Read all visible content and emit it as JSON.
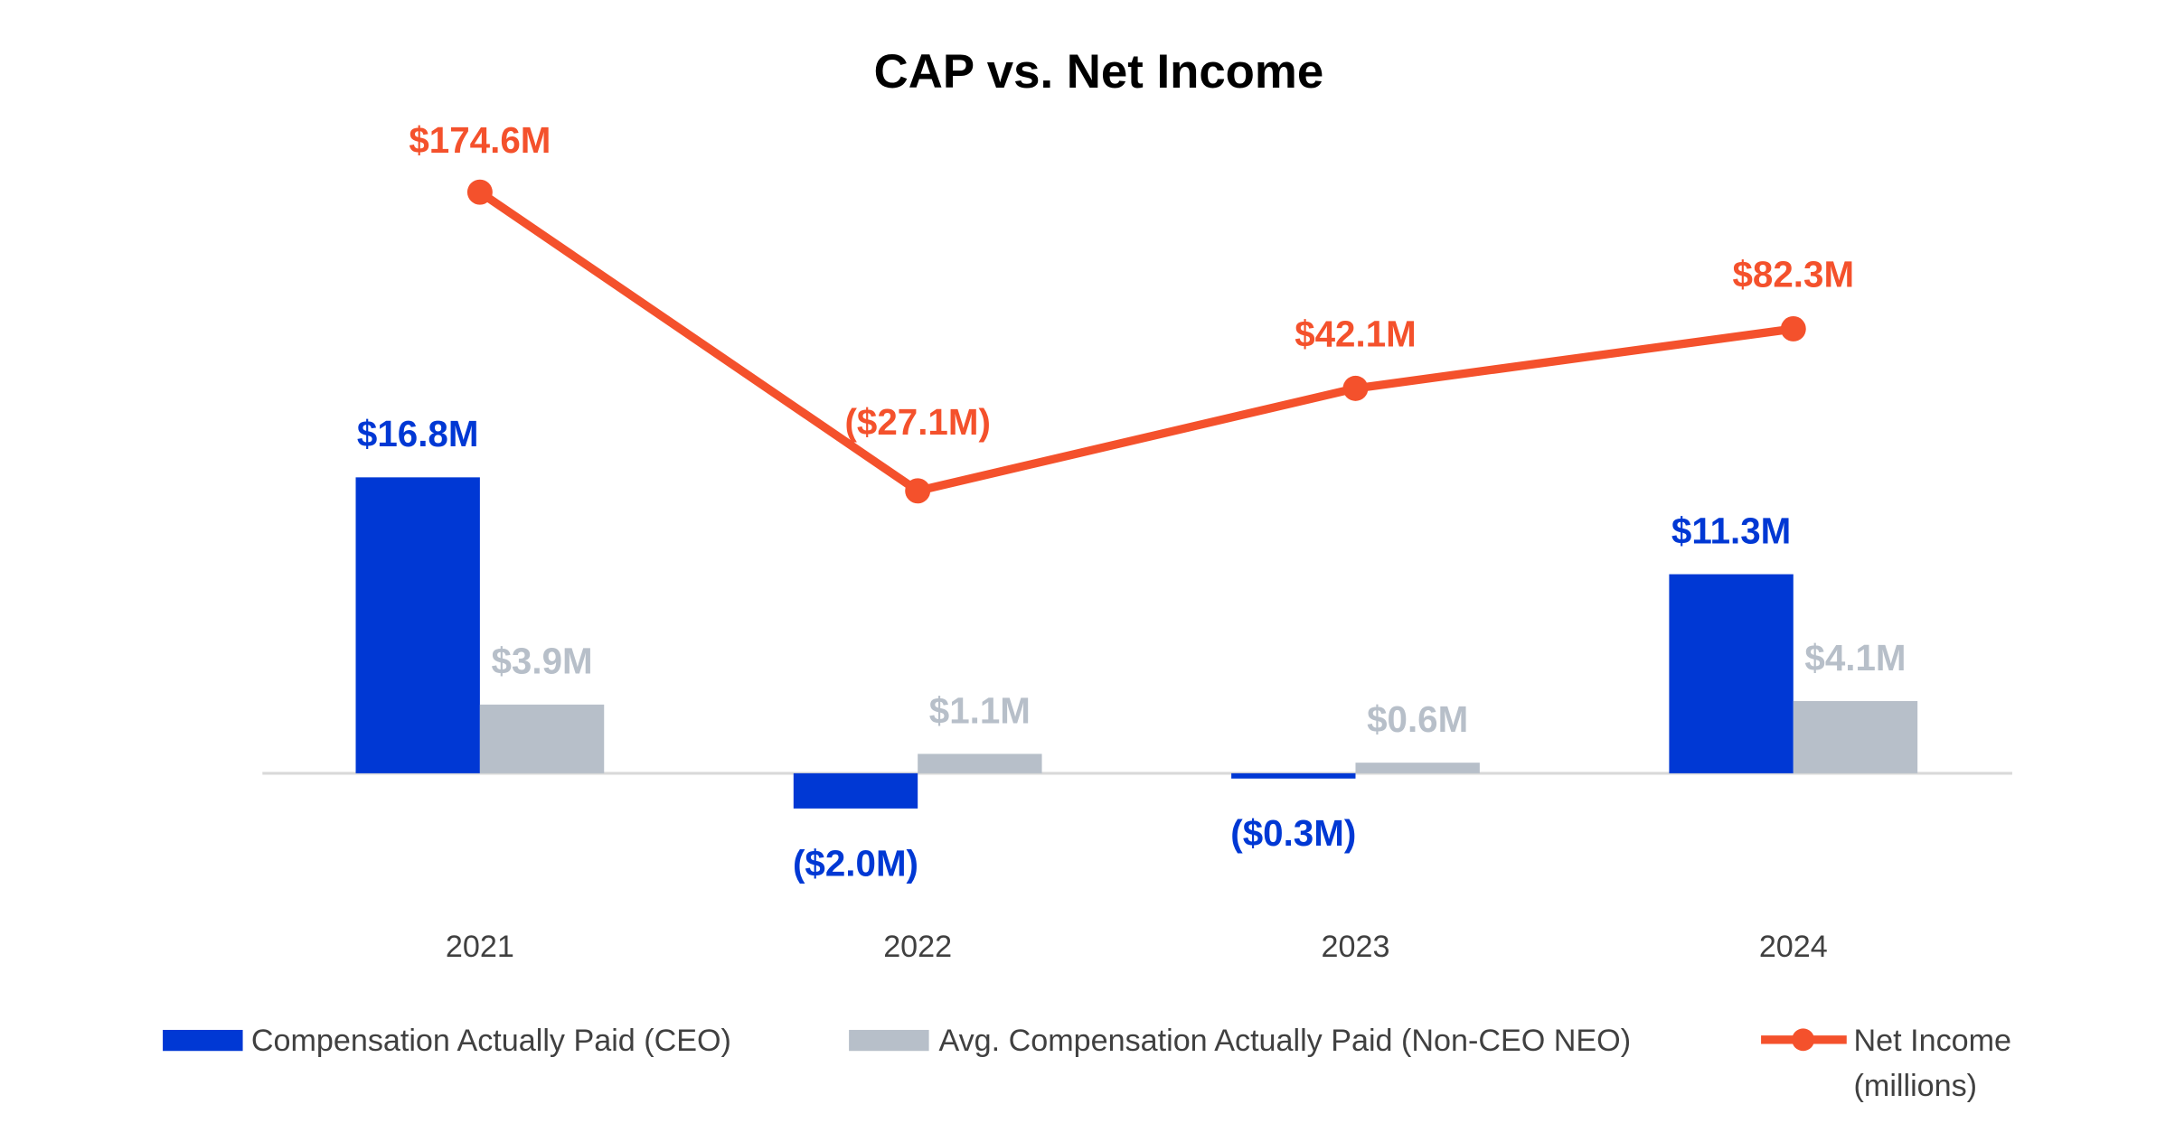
{
  "chart_data": {
    "type": "bar",
    "title": "CAP vs. Net Income",
    "categories": [
      "2021",
      "2022",
      "2023",
      "2024"
    ],
    "series": [
      {
        "name": "Compensation Actually Paid (CEO)",
        "kind": "bar",
        "axis": "left",
        "color": "#0038D4",
        "values": [
          16.8,
          -2.0,
          -0.3,
          11.3
        ],
        "labels": [
          "$16.8M",
          "($2.0M)",
          "($0.3M)",
          "$11.3M"
        ]
      },
      {
        "name": "Avg. Compensation Actually Paid (Non-CEO NEO)",
        "kind": "bar",
        "axis": "left",
        "color": "#B7BFC9",
        "values": [
          3.9,
          1.1,
          0.6,
          4.1
        ],
        "labels": [
          "$3.9M",
          "$1.1M",
          "$0.6M",
          "$4.1M"
        ]
      },
      {
        "name": "Net Income (millions)",
        "name_lines": [
          "Net Income",
          "(millions)"
        ],
        "kind": "line",
        "axis": "right",
        "color": "#F4512C",
        "values": [
          174.6,
          -27.1,
          42.1,
          82.3
        ],
        "labels": [
          "$174.6M",
          "($27.1M)",
          "$42.1M",
          "$82.3M"
        ]
      }
    ],
    "units": "millions of dollars",
    "legend_position": "bottom",
    "grid": false,
    "axis_labels_visible": false
  }
}
